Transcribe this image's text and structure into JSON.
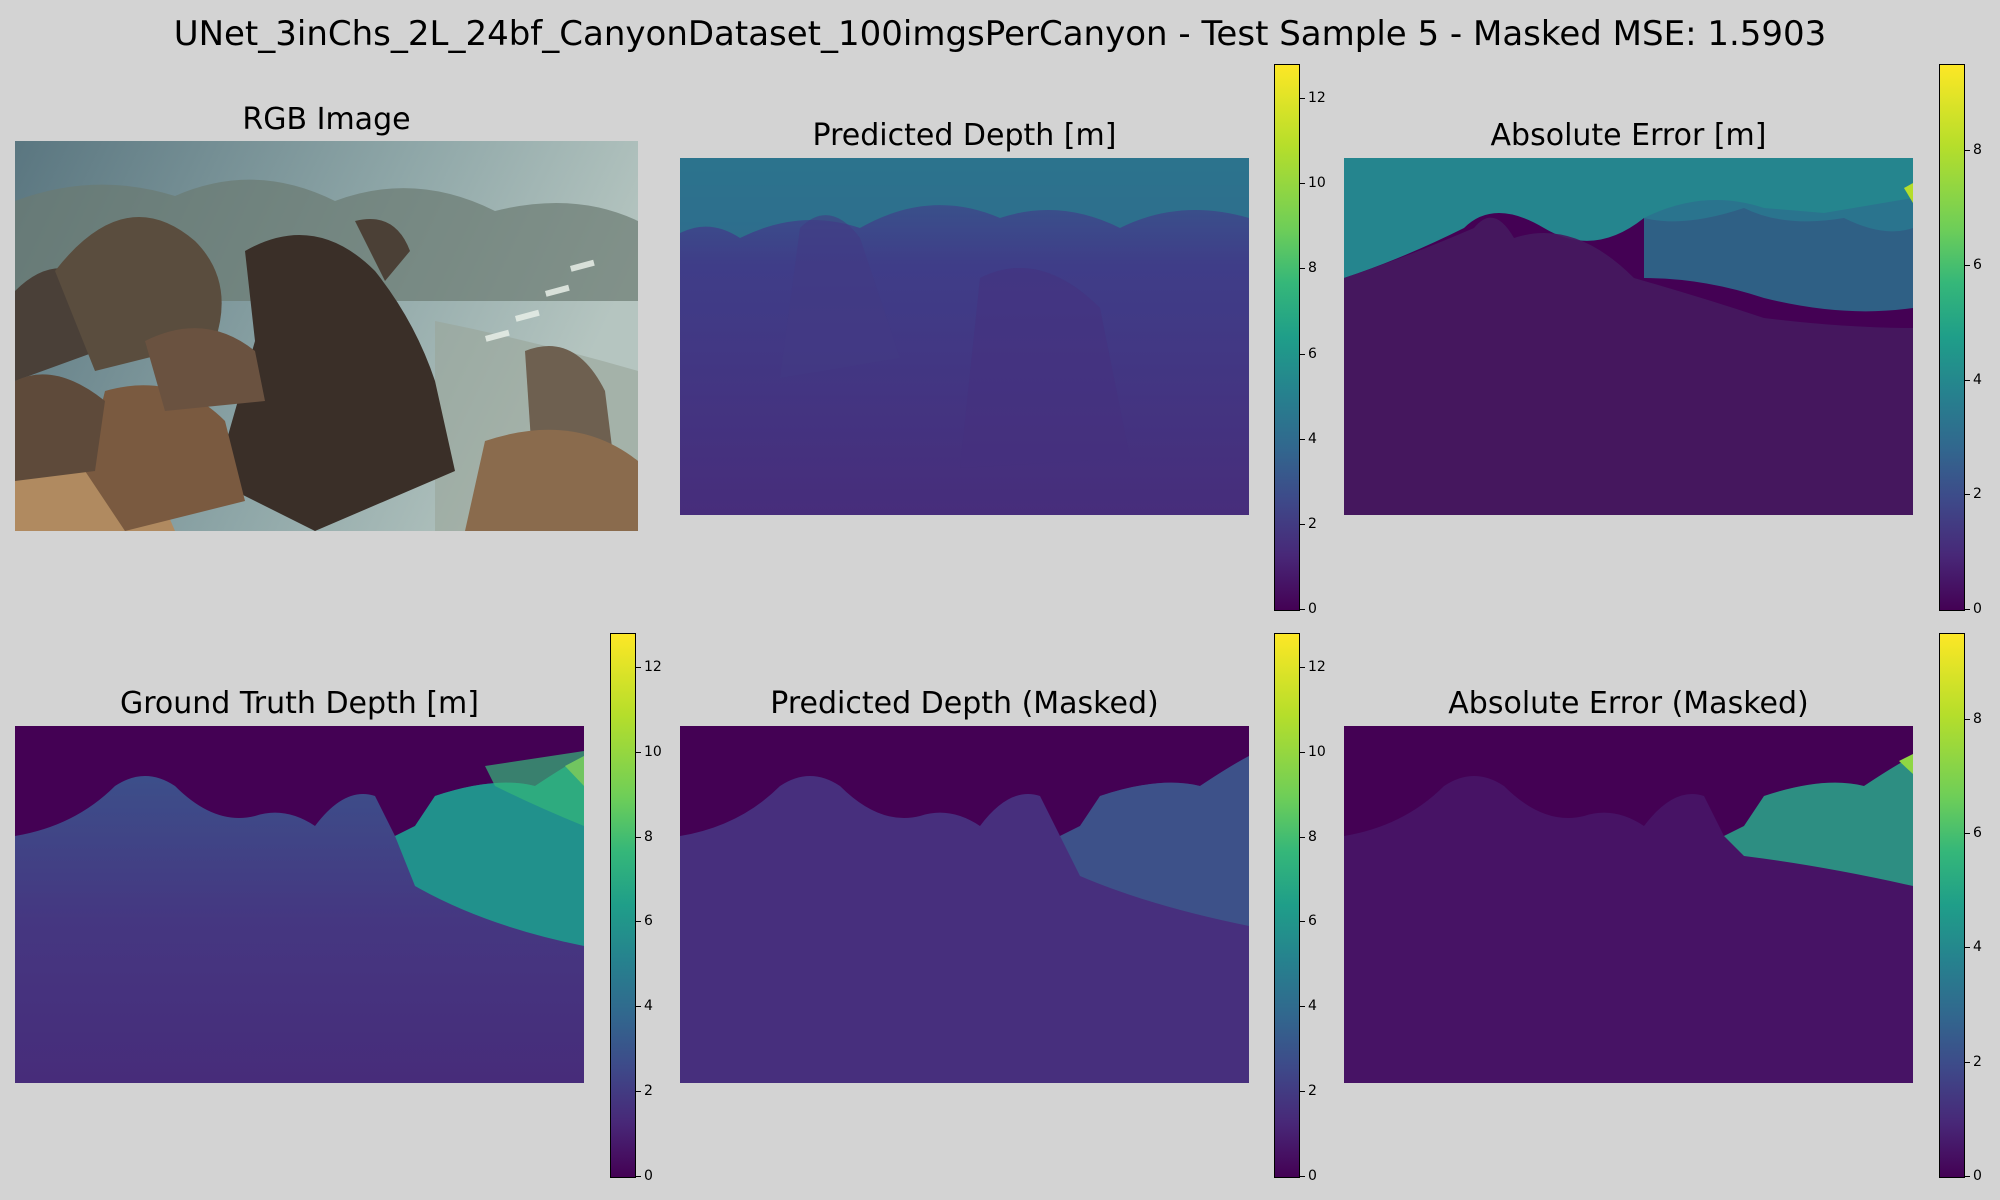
{
  "suptitle": "UNet_3inChs_2L_24bf_CanyonDataset_100imgsPerCanyon - Test Sample 5 - Masked MSE: 1.5903",
  "panels": {
    "rgb": {
      "title": "RGB Image"
    },
    "pred": {
      "title": "Predicted Depth [m]"
    },
    "err": {
      "title": "Absolute Error [m]"
    },
    "gt": {
      "title": "Ground Truth Depth [m]"
    },
    "pred_masked": {
      "title": "Predicted Depth (Masked)"
    },
    "err_masked": {
      "title": "Absolute Error (Masked)"
    }
  },
  "colorbars": {
    "depth": {
      "ticks": [
        "0",
        "2",
        "4",
        "6",
        "8",
        "10",
        "12"
      ],
      "max": 12.8
    },
    "error": {
      "ticks": [
        "0",
        "2",
        "4",
        "6",
        "8"
      ],
      "max": 9.5
    }
  },
  "colormap": "viridis",
  "colors": {
    "background": "#d3d3d3",
    "mask": "#440154"
  }
}
